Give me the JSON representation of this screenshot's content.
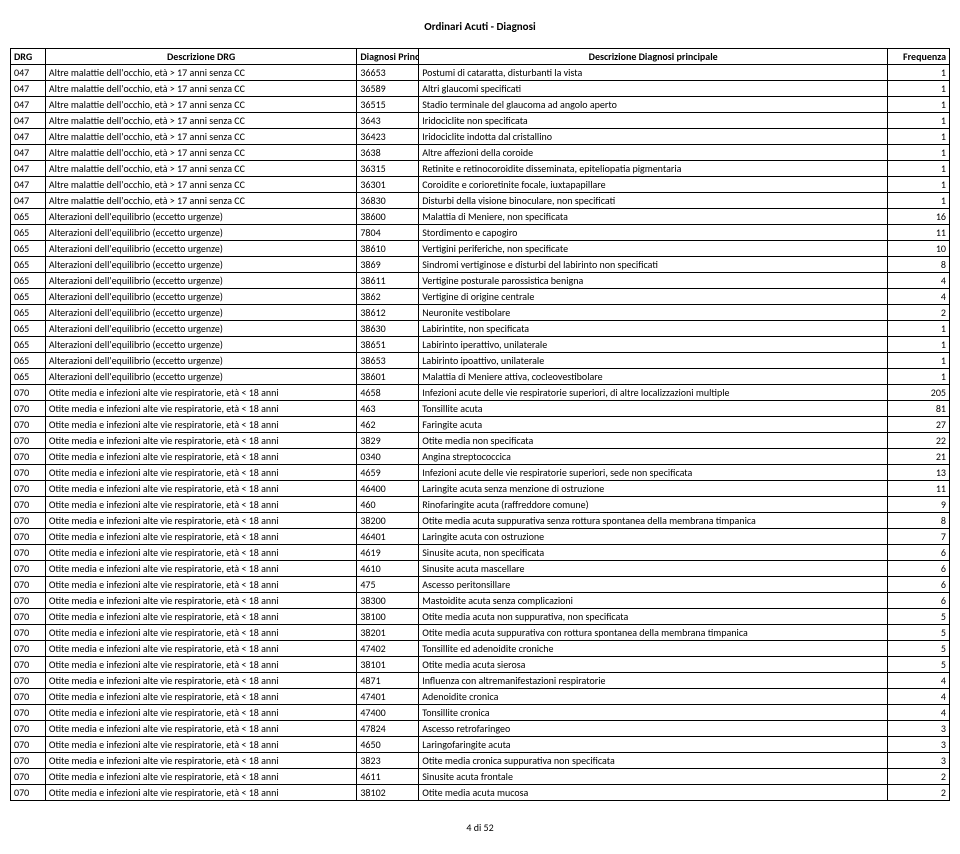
{
  "page_title": "Ordinari Acuti - Diagnosi",
  "footer": "4 di 52",
  "columns": {
    "drg": "DRG",
    "desc_drg": "Descrizione DRG",
    "diag": "Diagnosi Principale",
    "desc_diag": "Descrizione Diagnosi principale",
    "freq": "Frequenza"
  },
  "rows": [
    [
      "047",
      "Altre malattie dell'occhio, età > 17 anni senza CC",
      "36653",
      "Postumi di cataratta, disturbanti la vista",
      "1"
    ],
    [
      "047",
      "Altre malattie dell'occhio, età > 17 anni senza CC",
      "36589",
      "Altri glaucomi specificati",
      "1"
    ],
    [
      "047",
      "Altre malattie dell'occhio, età > 17 anni senza CC",
      "36515",
      "Stadio terminale del glaucoma ad angolo aperto",
      "1"
    ],
    [
      "047",
      "Altre malattie dell'occhio, età > 17 anni senza CC",
      "3643",
      "Iridociclite non specificata",
      "1"
    ],
    [
      "047",
      "Altre malattie dell'occhio, età > 17 anni senza CC",
      "36423",
      "Iridociclite indotta dal cristallino",
      "1"
    ],
    [
      "047",
      "Altre malattie dell'occhio, età > 17 anni senza CC",
      "3638",
      "Altre affezioni della coroide",
      "1"
    ],
    [
      "047",
      "Altre malattie dell'occhio, età > 17 anni senza CC",
      "36315",
      "Retinite e retinocoroidite disseminata, epiteliopatia pigmentaria",
      "1"
    ],
    [
      "047",
      "Altre malattie dell'occhio, età > 17 anni senza CC",
      "36301",
      "Coroidite e corioretinite focale, iuxtapapillare",
      "1"
    ],
    [
      "047",
      "Altre malattie dell'occhio, età > 17 anni senza CC",
      "36830",
      "Disturbi della visione binoculare, non specificati",
      "1"
    ],
    [
      "065",
      "Alterazioni dell'equilibrio (eccetto urgenze)",
      "38600",
      "Malattia di Meniere, non specificata",
      "16"
    ],
    [
      "065",
      "Alterazioni dell'equilibrio (eccetto urgenze)",
      "7804",
      "Stordimento e capogiro",
      "11"
    ],
    [
      "065",
      "Alterazioni dell'equilibrio (eccetto urgenze)",
      "38610",
      "Vertigini periferiche, non specificate",
      "10"
    ],
    [
      "065",
      "Alterazioni dell'equilibrio (eccetto urgenze)",
      "3869",
      "Sindromi vertiginose e disturbi del labirinto non specificati",
      "8"
    ],
    [
      "065",
      "Alterazioni dell'equilibrio (eccetto urgenze)",
      "38611",
      "Vertigine posturale parossistica benigna",
      "4"
    ],
    [
      "065",
      "Alterazioni dell'equilibrio (eccetto urgenze)",
      "3862",
      "Vertigine di origine centrale",
      "4"
    ],
    [
      "065",
      "Alterazioni dell'equilibrio (eccetto urgenze)",
      "38612",
      "Neuronite vestibolare",
      "2"
    ],
    [
      "065",
      "Alterazioni dell'equilibrio (eccetto urgenze)",
      "38630",
      "Labirintite, non specificata",
      "1"
    ],
    [
      "065",
      "Alterazioni dell'equilibrio (eccetto urgenze)",
      "38651",
      "Labirinto iperattivo, unilaterale",
      "1"
    ],
    [
      "065",
      "Alterazioni dell'equilibrio (eccetto urgenze)",
      "38653",
      "Labirinto ipoattivo, unilaterale",
      "1"
    ],
    [
      "065",
      "Alterazioni dell'equilibrio (eccetto urgenze)",
      "38601",
      "Malattia di Meniere attiva, cocleovestibolare",
      "1"
    ],
    [
      "070",
      "Otite media e infezioni alte vie respiratorie, età < 18 anni",
      "4658",
      "Infezioni acute delle vie respiratorie superiori, di altre localizzazioni multiple",
      "205"
    ],
    [
      "070",
      "Otite media e infezioni alte vie respiratorie, età < 18 anni",
      "463",
      "Tonsillite acuta",
      "81"
    ],
    [
      "070",
      "Otite media e infezioni alte vie respiratorie, età < 18 anni",
      "462",
      "Faringite acuta",
      "27"
    ],
    [
      "070",
      "Otite media e infezioni alte vie respiratorie, età < 18 anni",
      "3829",
      "Otite media non specificata",
      "22"
    ],
    [
      "070",
      "Otite media e infezioni alte vie respiratorie, età < 18 anni",
      "0340",
      "Angina streptococcica",
      "21"
    ],
    [
      "070",
      "Otite media e infezioni alte vie respiratorie, età < 18 anni",
      "4659",
      "Infezioni acute delle vie respiratorie superiori, sede non specificata",
      "13"
    ],
    [
      "070",
      "Otite media e infezioni alte vie respiratorie, età < 18 anni",
      "46400",
      "Laringite acuta senza menzione di ostruzione",
      "11"
    ],
    [
      "070",
      "Otite media e infezioni alte vie respiratorie, età < 18 anni",
      "460",
      "Rinofaringite acuta (raffreddore comune)",
      "9"
    ],
    [
      "070",
      "Otite media e infezioni alte vie respiratorie, età < 18 anni",
      "38200",
      "Otite media acuta suppurativa senza rottura spontanea della membrana timpanica",
      "8"
    ],
    [
      "070",
      "Otite media e infezioni alte vie respiratorie, età < 18 anni",
      "46401",
      "Laringite acuta con ostruzione",
      "7"
    ],
    [
      "070",
      "Otite media e infezioni alte vie respiratorie, età < 18 anni",
      "4619",
      "Sinusite acuta, non specificata",
      "6"
    ],
    [
      "070",
      "Otite media e infezioni alte vie respiratorie, età < 18 anni",
      "4610",
      "Sinusite acuta mascellare",
      "6"
    ],
    [
      "070",
      "Otite media e infezioni alte vie respiratorie, età < 18 anni",
      "475",
      "Ascesso peritonsillare",
      "6"
    ],
    [
      "070",
      "Otite media e infezioni alte vie respiratorie, età < 18 anni",
      "38300",
      "Mastoidite acuta senza complicazioni",
      "6"
    ],
    [
      "070",
      "Otite media e infezioni alte vie respiratorie, età < 18 anni",
      "38100",
      "Otite media acuta non suppurativa, non specificata",
      "5"
    ],
    [
      "070",
      "Otite media e infezioni alte vie respiratorie, età < 18 anni",
      "38201",
      "Otite media acuta suppurativa con rottura spontanea della membrana timpanica",
      "5"
    ],
    [
      "070",
      "Otite media e infezioni alte vie respiratorie, età < 18 anni",
      "47402",
      "Tonsillite ed adenoidite croniche",
      "5"
    ],
    [
      "070",
      "Otite media e infezioni alte vie respiratorie, età < 18 anni",
      "38101",
      "Otite media acuta sierosa",
      "5"
    ],
    [
      "070",
      "Otite media e infezioni alte vie respiratorie, età < 18 anni",
      "4871",
      "Influenza con altremanifestazioni respiratorie",
      "4"
    ],
    [
      "070",
      "Otite media e infezioni alte vie respiratorie, età < 18 anni",
      "47401",
      "Adenoidite cronica",
      "4"
    ],
    [
      "070",
      "Otite media e infezioni alte vie respiratorie, età < 18 anni",
      "47400",
      "Tonsillite cronica",
      "4"
    ],
    [
      "070",
      "Otite media e infezioni alte vie respiratorie, età < 18 anni",
      "47824",
      "Ascesso retrofaringeo",
      "3"
    ],
    [
      "070",
      "Otite media e infezioni alte vie respiratorie, età < 18 anni",
      "4650",
      "Laringofaringite acuta",
      "3"
    ],
    [
      "070",
      "Otite media e infezioni alte vie respiratorie, età < 18 anni",
      "3823",
      "Otite media cronica suppurativa non specificata",
      "3"
    ],
    [
      "070",
      "Otite media e infezioni alte vie respiratorie, età < 18 anni",
      "4611",
      "Sinusite acuta frontale",
      "2"
    ],
    [
      "070",
      "Otite media e infezioni alte vie respiratorie, età < 18 anni",
      "38102",
      "Otite media acuta mucosa",
      "2"
    ]
  ]
}
